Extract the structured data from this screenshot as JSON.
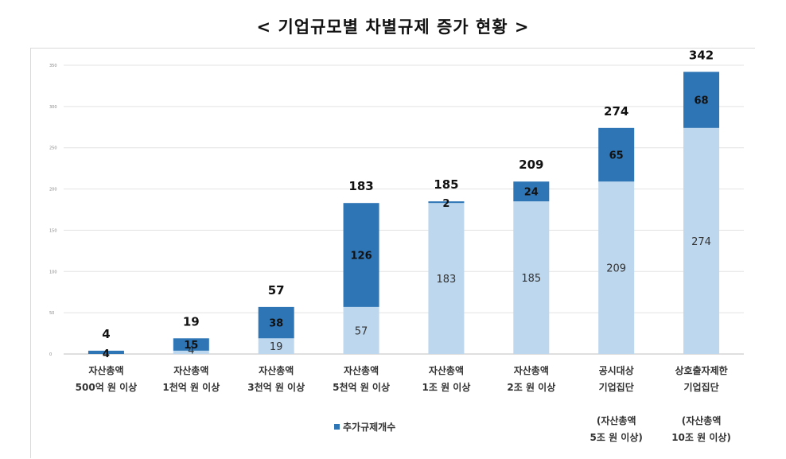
{
  "title": "< 기업규모별 차별규제 증가 현황 >",
  "chart_data": {
    "type": "bar",
    "stacked": true,
    "categories": [
      [
        "자산총액",
        "500억 원 이상"
      ],
      [
        "자산총액",
        "1천억 원 이상"
      ],
      [
        "자산총액",
        "3천억 원 이상"
      ],
      [
        "자산총액",
        "5천억 원 이상"
      ],
      [
        "자산총액",
        "1조 원 이상"
      ],
      [
        "자산총액",
        "2조 원 이상"
      ],
      [
        "공시대상",
        "기업집단",
        "",
        "(자산총액",
        "5조 원 이상)"
      ],
      [
        "상호출자제한",
        "기업집단",
        "",
        "(자산총액",
        "10조 원 이상)"
      ]
    ],
    "series": [
      {
        "values": [
          0,
          4,
          19,
          57,
          183,
          185,
          209,
          274
        ],
        "color": "#bdd7ee"
      },
      {
        "name": "추가규제개수",
        "values": [
          4,
          15,
          38,
          126,
          2,
          24,
          65,
          68
        ],
        "color": "#2e75b6"
      }
    ],
    "base_labels": [
      "",
      "4",
      "19",
      "57",
      "183",
      "185",
      "209",
      "274"
    ],
    "added_labels": [
      "4",
      "15",
      "38",
      "126",
      "2",
      "24",
      "65",
      "68"
    ],
    "totals": [
      4,
      19,
      57,
      183,
      185,
      209,
      274,
      342
    ],
    "ylim": [
      0,
      350
    ],
    "yticks": [
      0,
      50,
      100,
      150,
      200,
      250,
      300,
      350
    ],
    "grid": true,
    "legend": "bottom-center"
  }
}
